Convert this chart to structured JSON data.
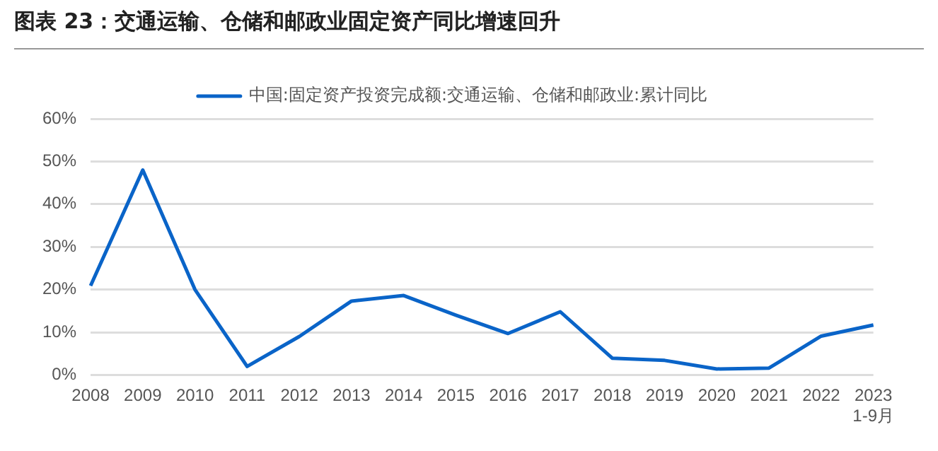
{
  "chart_data": {
    "type": "line",
    "title": "图表 23：交通运输、仓储和邮政业固定资产同比增速回升",
    "categories": [
      "2008",
      "2009",
      "2010",
      "2011",
      "2012",
      "2013",
      "2014",
      "2015",
      "2016",
      "2017",
      "2018",
      "2019",
      "2020",
      "2021",
      "2022",
      "2023\n1-9月"
    ],
    "series": [
      {
        "name": "中国:固定资产投资完成额:交通运输、仓储和邮政业:累计同比",
        "color": "#0a64c8",
        "values": [
          20.9,
          48,
          20,
          2,
          9,
          17.3,
          18.6,
          14,
          9.7,
          14.8,
          3.9,
          3.4,
          1.4,
          1.6,
          9.1,
          11.7
        ]
      }
    ],
    "ylim": [
      0,
      60
    ],
    "yticks": [
      {
        "value": 0,
        "label": "0%"
      },
      {
        "value": 10,
        "label": "10%"
      },
      {
        "value": 20,
        "label": "20%"
      },
      {
        "value": 30,
        "label": "30%"
      },
      {
        "value": 40,
        "label": "40%"
      },
      {
        "value": 50,
        "label": "50%"
      },
      {
        "value": 60,
        "label": "60%"
      }
    ],
    "grid": "y",
    "legend": "top",
    "marker": "none",
    "line_style": "solid"
  }
}
